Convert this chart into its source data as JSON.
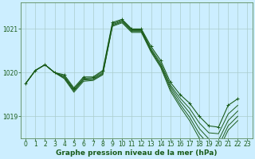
{
  "background_color": "#cceeff",
  "grid_color": "#aacccc",
  "line_color": "#1a5c1a",
  "marker_color": "#1a5c1a",
  "xlabel": "Graphe pression niveau de la mer (hPa)",
  "xlabel_fontsize": 6.5,
  "tick_fontsize": 5.5,
  "ylim": [
    1018.5,
    1021.6
  ],
  "xlim": [
    -0.5,
    23.5
  ],
  "yticks": [
    1019,
    1020,
    1021
  ],
  "xticks": [
    0,
    1,
    2,
    3,
    4,
    5,
    6,
    7,
    8,
    9,
    10,
    11,
    12,
    13,
    14,
    15,
    16,
    17,
    18,
    19,
    20,
    21,
    22,
    23
  ],
  "series": [
    [
      1019.75,
      1020.05,
      1020.18,
      1020.0,
      1019.95,
      1019.65,
      1019.9,
      1019.9,
      1020.05,
      1021.15,
      1021.22,
      1021.0,
      1021.0,
      1020.6,
      1020.28,
      1019.78,
      1019.5,
      1019.3,
      1019.0,
      1018.78,
      1018.75,
      1019.25,
      1019.4
    ],
    [
      1019.75,
      1020.05,
      1020.18,
      1020.0,
      1019.92,
      1019.62,
      1019.87,
      1019.88,
      1020.02,
      1021.12,
      1021.2,
      1020.98,
      1020.98,
      1020.55,
      1020.22,
      1019.72,
      1019.42,
      1019.18,
      1018.85,
      1018.62,
      1018.6,
      1019.05,
      1019.25
    ],
    [
      1019.75,
      1020.05,
      1020.18,
      1020.0,
      1019.9,
      1019.6,
      1019.85,
      1019.86,
      1019.99,
      1021.1,
      1021.18,
      1020.96,
      1020.96,
      1020.52,
      1020.18,
      1019.68,
      1019.35,
      1019.08,
      1018.72,
      1018.48,
      1018.45,
      1018.9,
      1019.12
    ],
    [
      1019.75,
      1020.05,
      1020.18,
      1020.0,
      1019.88,
      1019.58,
      1019.83,
      1019.84,
      1019.97,
      1021.08,
      1021.16,
      1020.94,
      1020.94,
      1020.5,
      1020.15,
      1019.63,
      1019.28,
      1018.98,
      1018.6,
      1018.35,
      1018.32,
      1018.78,
      1019.0
    ],
    [
      1019.75,
      1020.05,
      1020.18,
      1020.0,
      1019.86,
      1019.55,
      1019.8,
      1019.82,
      1019.95,
      1021.06,
      1021.14,
      1020.92,
      1020.92,
      1020.47,
      1020.12,
      1019.58,
      1019.22,
      1018.9,
      1018.5,
      1018.25,
      1018.22,
      1018.68,
      1018.9
    ]
  ]
}
